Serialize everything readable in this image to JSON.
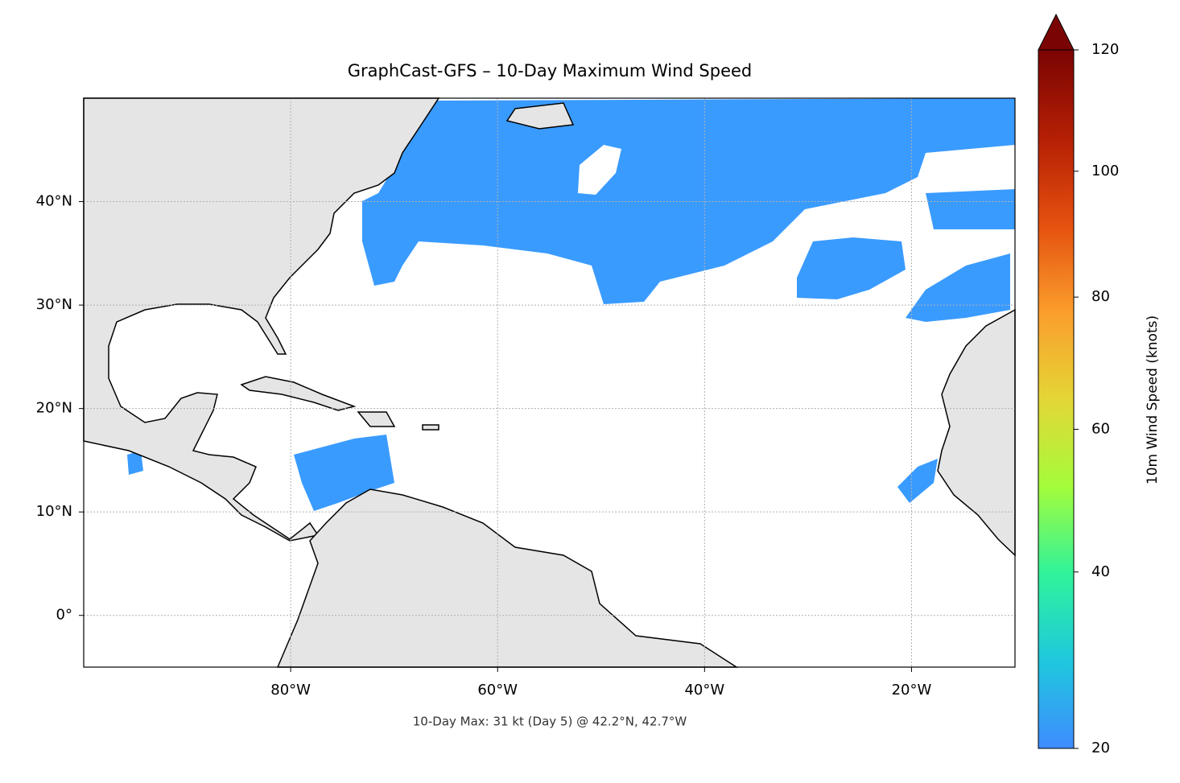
{
  "chart_data": {
    "type": "map",
    "title": "GraphCast-GFS – 10-Day Maximum Wind Speed",
    "annotation": "10-Day Max: 31 kt (Day 5) @ 42.2°N, 42.7°W",
    "xlim": [
      -100,
      -10
    ],
    "ylim": [
      -5,
      50
    ],
    "xticks": [
      {
        "value": -80,
        "label": "80°W"
      },
      {
        "value": -60,
        "label": "60°W"
      },
      {
        "value": -40,
        "label": "40°W"
      },
      {
        "value": -20,
        "label": "20°W"
      }
    ],
    "yticks": [
      {
        "value": 0,
        "label": "0°"
      },
      {
        "value": 10,
        "label": "10°N"
      },
      {
        "value": 20,
        "label": "20°N"
      },
      {
        "value": 30,
        "label": "30°N"
      },
      {
        "value": 40,
        "label": "40°N"
      }
    ],
    "grid": true,
    "colorbar": {
      "label": "10m Wind Speed (knots)",
      "lim": [
        20,
        120
      ],
      "ticks": [
        20,
        40,
        60,
        80,
        100,
        120
      ],
      "colors": [
        "#3f8cff",
        "#1fc8de",
        "#2ff39a",
        "#a4fc3b",
        "#e4d636",
        "#fb9d2c",
        "#e4500f",
        "#b41f04",
        "#7a0403"
      ]
    }
  }
}
